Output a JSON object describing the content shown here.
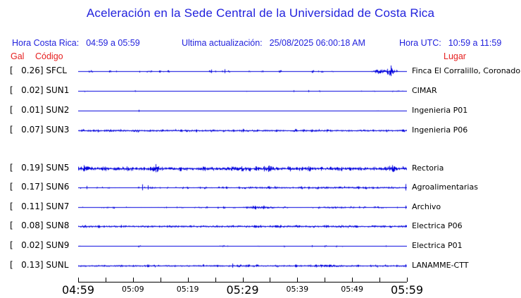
{
  "header": {
    "local_time_label": "Hora Costa Rica:",
    "local_time_value": "04:59 a 05:59",
    "update_label": "Ultima actualización:",
    "update_value": "25/08/2025 06:00:18 AM",
    "utc_label": "Hora UTC:",
    "utc_value": "10:59 a 11:59"
  },
  "column_headers": {
    "gal": "Gal",
    "code": "Código",
    "location": "Lugar"
  },
  "colors": {
    "blue_text": "#2222dd",
    "red_text": "#e62020",
    "trace_blue": "#0000dd",
    "axis_black": "#000000"
  },
  "chart_data": {
    "type": "line",
    "subtype": "seismogram-multitrace",
    "title": "Aceleración en la Sede Central de la Universidad de Costa Rica",
    "unit": "Gal",
    "x_axis": {
      "start": "04:59",
      "end": "05:59",
      "tick_count": 13,
      "tick_interval_minutes": 5,
      "labels": [
        {
          "index": 0,
          "text": "04:59",
          "size": "large"
        },
        {
          "index": 2,
          "text": "05:09",
          "size": "small"
        },
        {
          "index": 4,
          "text": "05:19",
          "size": "small"
        },
        {
          "index": 6,
          "text": "05:29",
          "size": "large"
        },
        {
          "index": 8,
          "text": "05:39",
          "size": "small"
        },
        {
          "index": 10,
          "text": "05:49",
          "size": "small"
        },
        {
          "index": 12,
          "text": "05:59",
          "size": "large"
        }
      ]
    },
    "series": [
      {
        "code": "SFCL",
        "gal": "0.26",
        "location": "Finca El Corralillo, Coronado",
        "trace": {
          "seed": 11,
          "base": 0.35,
          "blip_p": 0.05,
          "blip_amp": 1.3,
          "bursts": [
            [
              0.915,
              0.012,
              3.2
            ],
            [
              0.948,
              0.009,
              5.5
            ]
          ],
          "spikes": [
            [
              0.951,
              8.5
            ],
            [
              0.405,
              2.8
            ],
            [
              0.445,
              3.2
            ],
            [
              0.115,
              1.2
            ],
            [
              0.56,
              1.4
            ],
            [
              0.73,
              1.2
            ]
          ]
        }
      },
      {
        "code": "SUN1",
        "gal": "0.02",
        "location": "CIMAR",
        "trace": {
          "seed": 22,
          "base": 0.28,
          "blip_p": 0.012,
          "blip_amp": 0.9,
          "bursts": [],
          "spikes": [
            [
              0.655,
              1.4
            ],
            [
              0.7,
              1.6
            ],
            [
              0.86,
              0.8
            ]
          ]
        }
      },
      {
        "code": "SUN2",
        "gal": "0.01",
        "location": "Ingenieria P01",
        "trace": {
          "seed": 33,
          "base": 0.25,
          "blip_p": 0.006,
          "blip_amp": 0.7,
          "bursts": [],
          "spikes": [
            [
              0.185,
              1.7
            ]
          ]
        }
      },
      {
        "code": "SUN3",
        "gal": "0.07",
        "location": "Ingenieria P06",
        "trace": {
          "seed": 44,
          "base": 1.15,
          "blip_p": 0.1,
          "blip_amp": 0.8,
          "bursts": [
            [
              0.07,
              0.06,
              0.35
            ]
          ],
          "spikes": [
            [
              0.5,
              2.6
            ],
            [
              0.27,
              1.4
            ],
            [
              0.75,
              1.2
            ]
          ]
        }
      },
      {
        "code": "SUN5",
        "gal": "0.19",
        "location": "Rectoria",
        "trace": {
          "seed": 55,
          "base": 2.0,
          "blip_p": 0.12,
          "blip_amp": 1.2,
          "bursts": [
            [
              0.015,
              0.02,
              1.6
            ],
            [
              0.235,
              0.007,
              3.0
            ],
            [
              0.58,
              0.008,
              2.0
            ],
            [
              0.95,
              0.012,
              2.2
            ]
          ],
          "spikes": [
            [
              0.017,
              5.0
            ],
            [
              0.235,
              6.5
            ],
            [
              0.58,
              4.5
            ],
            [
              0.955,
              5.0
            ]
          ]
        }
      },
      {
        "code": "SUN6",
        "gal": "0.17",
        "location": "Agroalimentarias",
        "trace": {
          "seed": 66,
          "base": 0.55,
          "blip_p": 0.1,
          "blip_amp": 0.9,
          "bursts": [
            [
              0.78,
              0.22,
              0.7
            ]
          ],
          "spikes": [
            [
              0.025,
              2.6
            ],
            [
              0.195,
              4.8
            ],
            [
              0.213,
              3.4
            ],
            [
              0.58,
              2.2
            ],
            [
              0.995,
              5.2
            ]
          ]
        }
      },
      {
        "code": "SUN7",
        "gal": "0.11",
        "location": "Archivo",
        "trace": {
          "seed": 77,
          "base": 0.55,
          "blip_p": 0.09,
          "blip_amp": 0.8,
          "bursts": [
            [
              0.55,
              0.035,
              1.1
            ],
            [
              0.78,
              0.03,
              0.9
            ]
          ],
          "spikes": [
            [
              0.53,
              2.4
            ],
            [
              0.3,
              1.2
            ],
            [
              0.995,
              2.6
            ]
          ]
        }
      },
      {
        "code": "SUN8",
        "gal": "0.08",
        "location": "Electrica P06",
        "trace": {
          "seed": 88,
          "base": 1.3,
          "blip_p": 0.08,
          "blip_amp": 0.7,
          "bursts": [],
          "spikes": [
            [
              0.13,
              2.2
            ],
            [
              0.555,
              2.0
            ],
            [
              0.93,
              1.6
            ]
          ]
        }
      },
      {
        "code": "SUN9",
        "gal": "0.02",
        "location": "Electrica P01",
        "trace": {
          "seed": 99,
          "base": 0.3,
          "blip_p": 0.02,
          "blip_amp": 0.8,
          "bursts": [],
          "spikes": [
            [
              0.71,
              1.5
            ],
            [
              0.935,
              1.1
            ],
            [
              0.455,
              0.9
            ]
          ]
        }
      },
      {
        "code": "SUNL",
        "gal": "0.13",
        "location": "LANAMME-CTT",
        "trace": {
          "seed": 110,
          "base": 1.05,
          "blip_p": 0.1,
          "blip_amp": 0.8,
          "bursts": [
            [
              0.77,
              0.02,
              0.8
            ]
          ],
          "spikes": [
            [
              0.468,
              3.4
            ],
            [
              0.765,
              2.0
            ],
            [
              0.995,
              2.4
            ],
            [
              0.08,
              1.5
            ]
          ]
        }
      }
    ]
  }
}
